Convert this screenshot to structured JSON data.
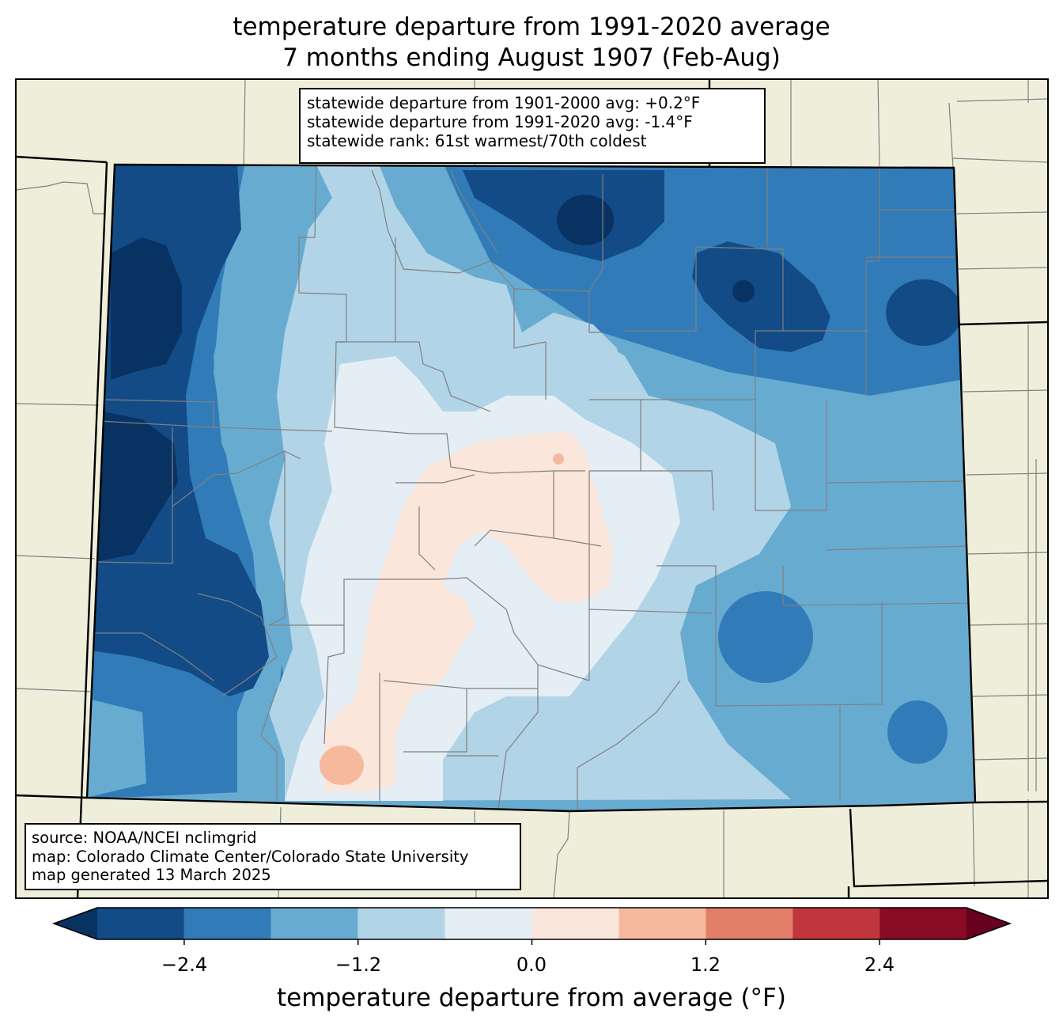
{
  "title": {
    "line1": "temperature departure from 1991-2020 average",
    "line2": "7 months ending August 1907 (Feb-Aug)"
  },
  "stats_box": {
    "line1": "statewide departure from 1901-2000 avg: +0.2°F",
    "line2": "statewide departure from 1991-2020 avg: -1.4°F",
    "line3": "statewide rank: 61st warmest/70th coldest"
  },
  "source_box": {
    "line1": "source: NOAA/NCEI nclimgrid",
    "line2": "map: Colorado Climate Center/Colorado State University",
    "line3": "map generated 13 March 2025"
  },
  "colorbar": {
    "label": "temperature departure from average (°F)",
    "ticks": [
      "−2.4",
      "−1.2",
      "0.0",
      "1.2",
      "2.4"
    ],
    "bins": [
      {
        "min": -3.0,
        "max": -2.4,
        "color": "#134b87"
      },
      {
        "min": -2.4,
        "max": -1.8,
        "color": "#317cb8"
      },
      {
        "min": -1.8,
        "max": -1.2,
        "color": "#68abd1"
      },
      {
        "min": -1.2,
        "max": -0.6,
        "color": "#b2d4e7"
      },
      {
        "min": -0.6,
        "max": 0.0,
        "color": "#e5eef4"
      },
      {
        "min": 0.0,
        "max": 0.6,
        "color": "#fbe6dc"
      },
      {
        "min": 0.6,
        "max": 1.2,
        "color": "#f7b99e"
      },
      {
        "min": 1.2,
        "max": 1.8,
        "color": "#e17f68"
      },
      {
        "min": 1.8,
        "max": 2.4,
        "color": "#c1363d"
      },
      {
        "min": 2.4,
        "max": 3.0,
        "color": "#8a0b25"
      }
    ],
    "under_color": "#083262",
    "over_color": "#68011f"
  },
  "colors": {
    "land_outside": "#efeedb",
    "county_lines": "#808080",
    "state_lines": "#000000"
  }
}
